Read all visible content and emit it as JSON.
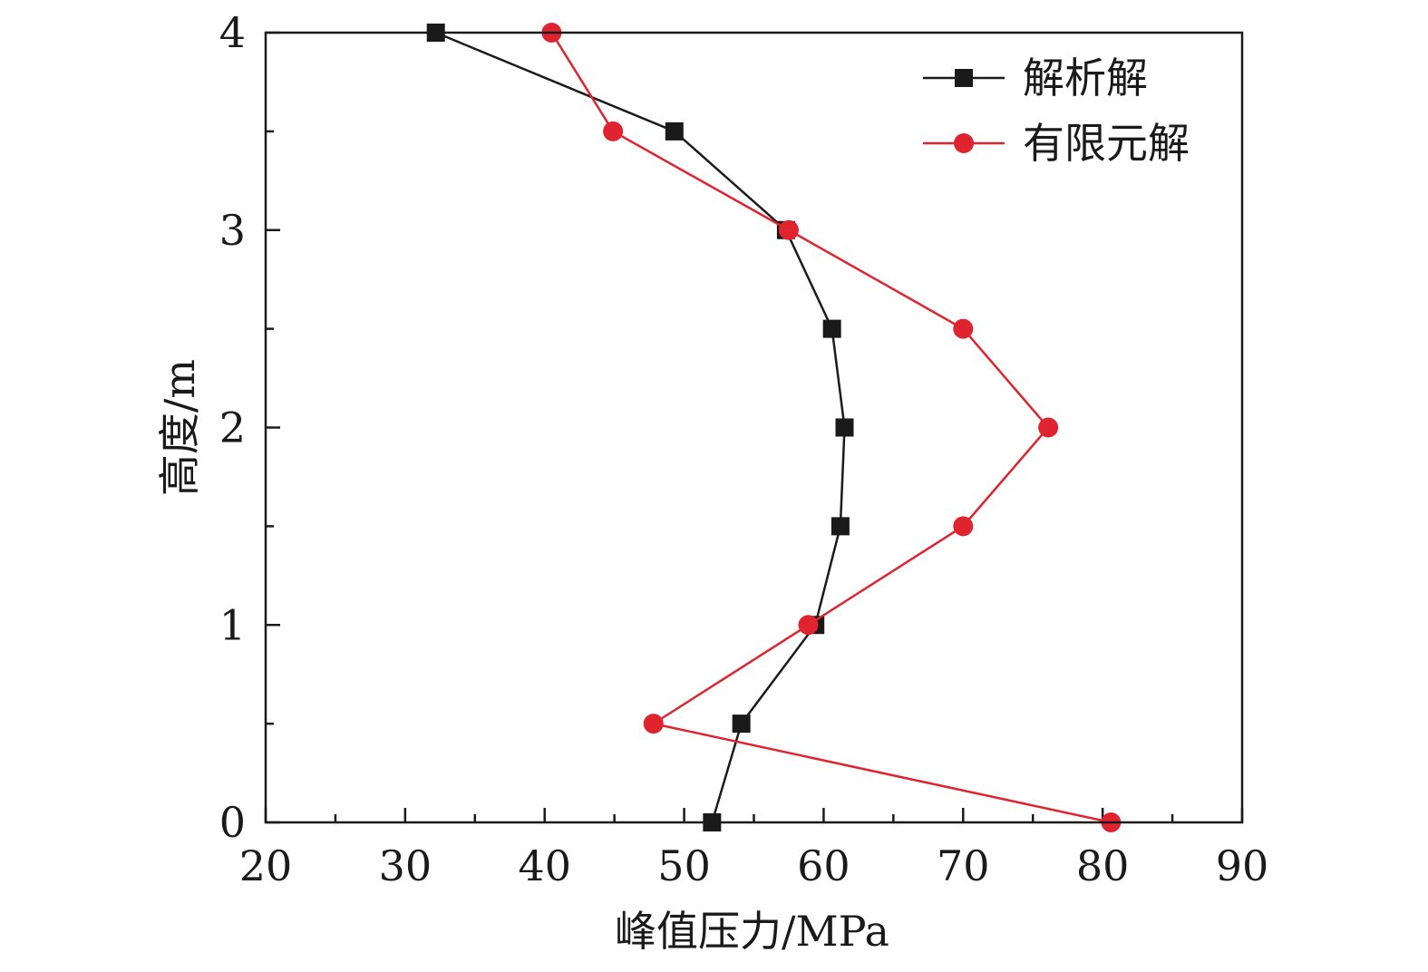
{
  "chart_data": {
    "type": "line",
    "xlabel": "峰值压力/MPa",
    "ylabel": "高度/m",
    "xlim": [
      20,
      90
    ],
    "ylim": [
      0,
      4
    ],
    "x_ticks": [
      20,
      30,
      40,
      50,
      60,
      70,
      80,
      90
    ],
    "y_ticks": [
      0,
      1,
      2,
      3,
      4
    ],
    "grid": false,
    "legend_position": "top-right",
    "series": [
      {
        "name": "解析解",
        "color": "#1a1a1a",
        "marker": "square",
        "points": [
          {
            "x": 52.0,
            "y": 0
          },
          {
            "x": 54.1,
            "y": 0.5
          },
          {
            "x": 59.4,
            "y": 1.0
          },
          {
            "x": 61.2,
            "y": 1.5
          },
          {
            "x": 61.5,
            "y": 2.0
          },
          {
            "x": 60.6,
            "y": 2.5
          },
          {
            "x": 57.3,
            "y": 3.0
          },
          {
            "x": 49.3,
            "y": 3.5
          },
          {
            "x": 32.2,
            "y": 4.0
          }
        ]
      },
      {
        "name": "有限元解",
        "color": "#e0242f",
        "marker": "circle",
        "points": [
          {
            "x": 80.6,
            "y": 0
          },
          {
            "x": 47.8,
            "y": 0.5
          },
          {
            "x": 58.9,
            "y": 1.0
          },
          {
            "x": 70.0,
            "y": 1.5
          },
          {
            "x": 76.1,
            "y": 2.0
          },
          {
            "x": 70.0,
            "y": 2.5
          },
          {
            "x": 57.5,
            "y": 3.0
          },
          {
            "x": 44.9,
            "y": 3.5
          },
          {
            "x": 40.5,
            "y": 4.0
          }
        ]
      }
    ]
  }
}
